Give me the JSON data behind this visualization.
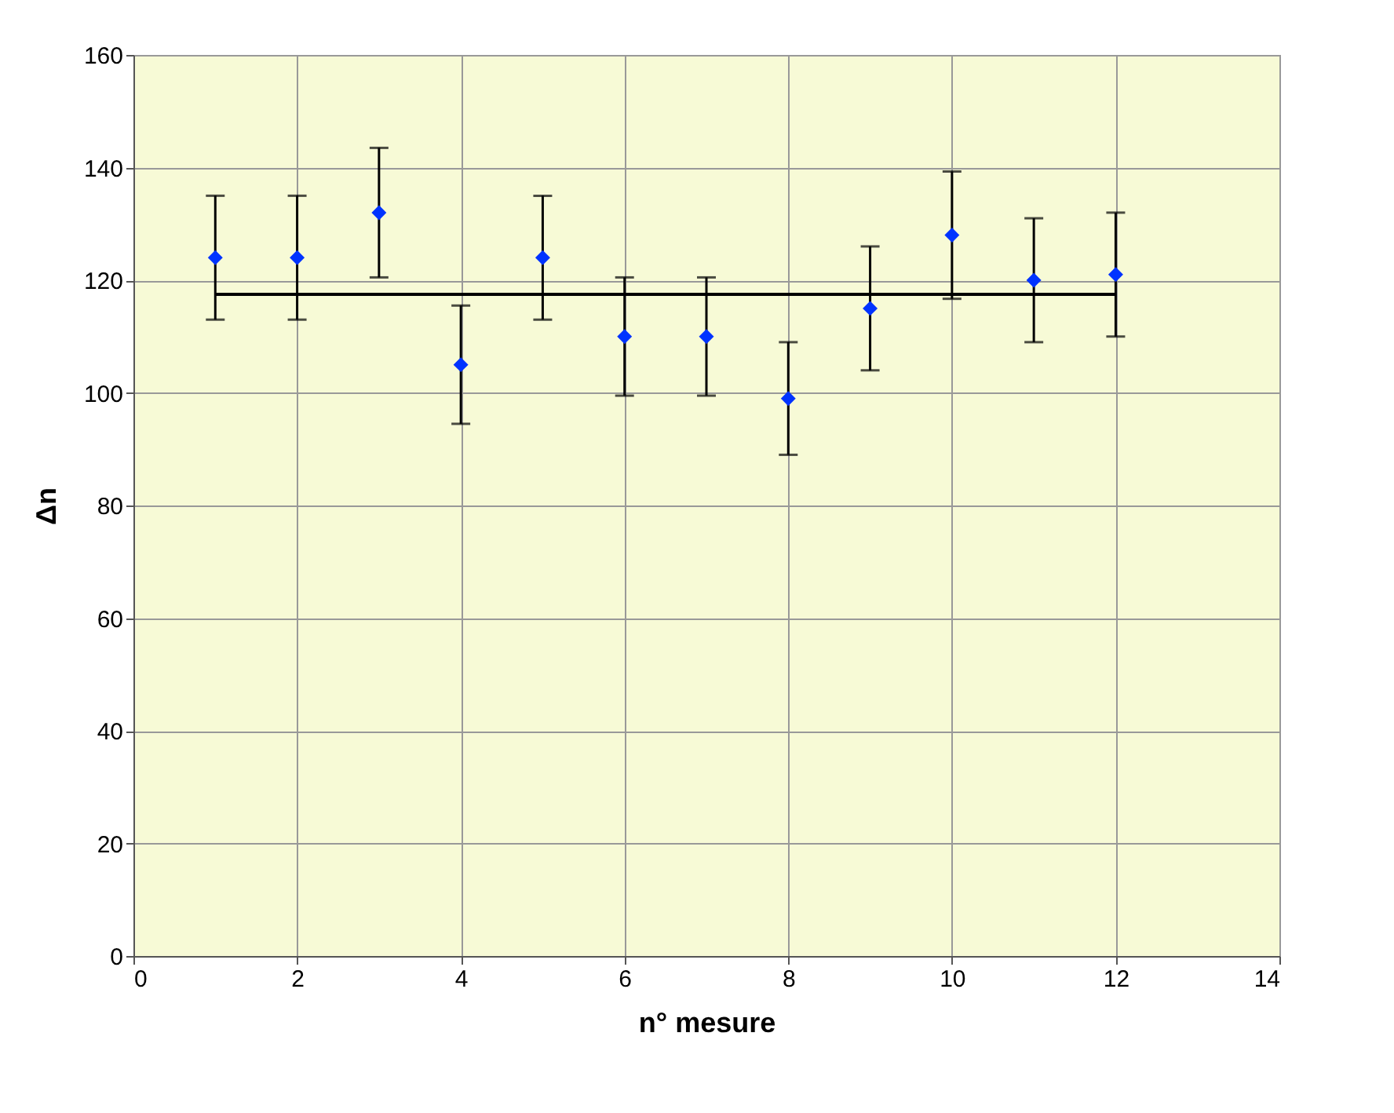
{
  "chart_data": {
    "type": "scatter",
    "xlabel": "n° mesure",
    "ylabel": "Δn",
    "xlim": [
      0,
      14
    ],
    "xticks": [
      0,
      2,
      4,
      6,
      8,
      10,
      12,
      14
    ],
    "ylim": [
      0,
      160
    ],
    "yticks": [
      0,
      20,
      40,
      60,
      80,
      100,
      120,
      140,
      160
    ],
    "grid": true,
    "series": [
      {
        "marker": "diamond",
        "color": "#0033ff",
        "x": [
          1,
          2,
          3,
          4,
          5,
          6,
          7,
          8,
          9,
          10,
          11,
          12
        ],
        "values": [
          124,
          124,
          132,
          105,
          124,
          110,
          110,
          99,
          115,
          128,
          120,
          121
        ],
        "errors": [
          11,
          11,
          11.5,
          10.5,
          11,
          10.5,
          10.5,
          10,
          11,
          11.3,
          11,
          11
        ]
      },
      {
        "type": "line",
        "marker": "none",
        "color": "#000000",
        "x": [
          1,
          12
        ],
        "values": [
          117.5,
          117.5
        ]
      }
    ]
  }
}
